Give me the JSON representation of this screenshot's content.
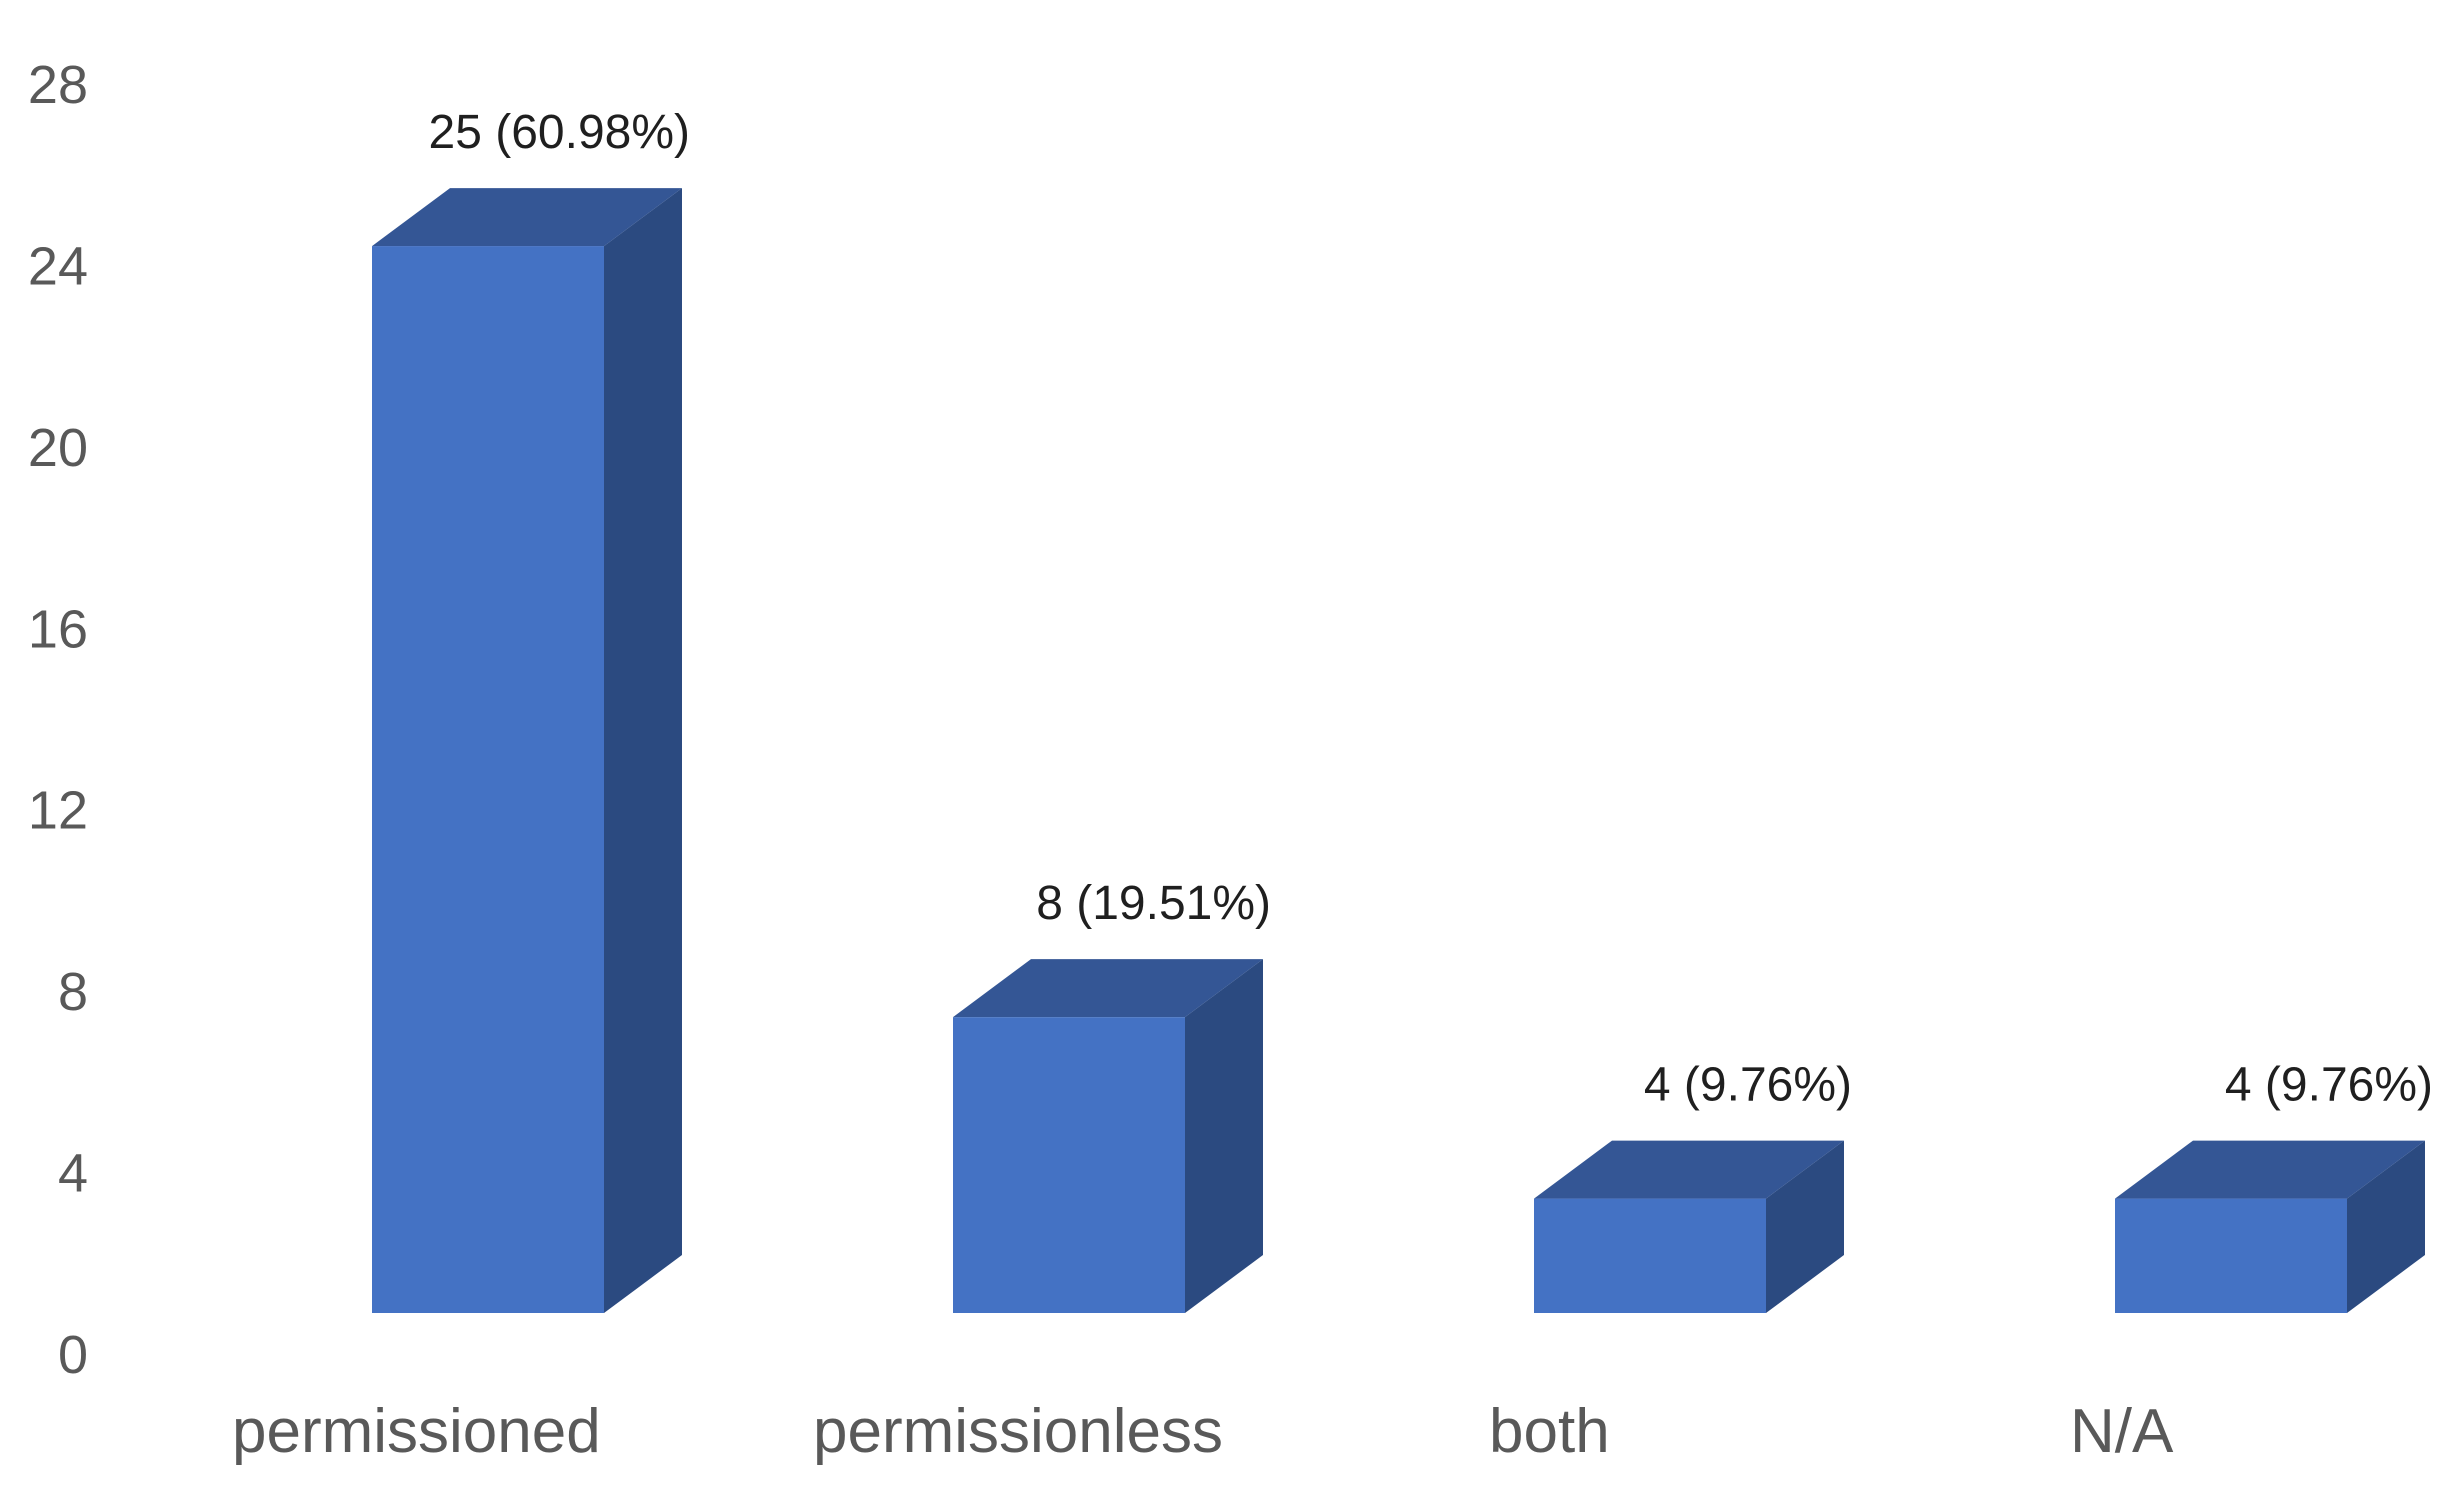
{
  "chart_data": {
    "type": "bar",
    "categories": [
      "permissioned",
      "permissionless",
      "both",
      "N/A"
    ],
    "values": [
      25,
      8,
      4,
      4
    ],
    "data_labels": [
      "25 (60.98%)",
      "8 (19.51%)",
      "4 (9.76%)",
      "4 (9.76%)"
    ],
    "title": "",
    "xlabel": "",
    "ylabel": "",
    "ylim": [
      0,
      28
    ],
    "yticks": [
      "0",
      "4",
      "8",
      "12",
      "16",
      "20",
      "24",
      "28"
    ],
    "grid": false,
    "legend": "none",
    "style": "3d-column",
    "colors": {
      "front": "#4472c4",
      "top": "#345695",
      "side": "#2b4a80"
    }
  }
}
